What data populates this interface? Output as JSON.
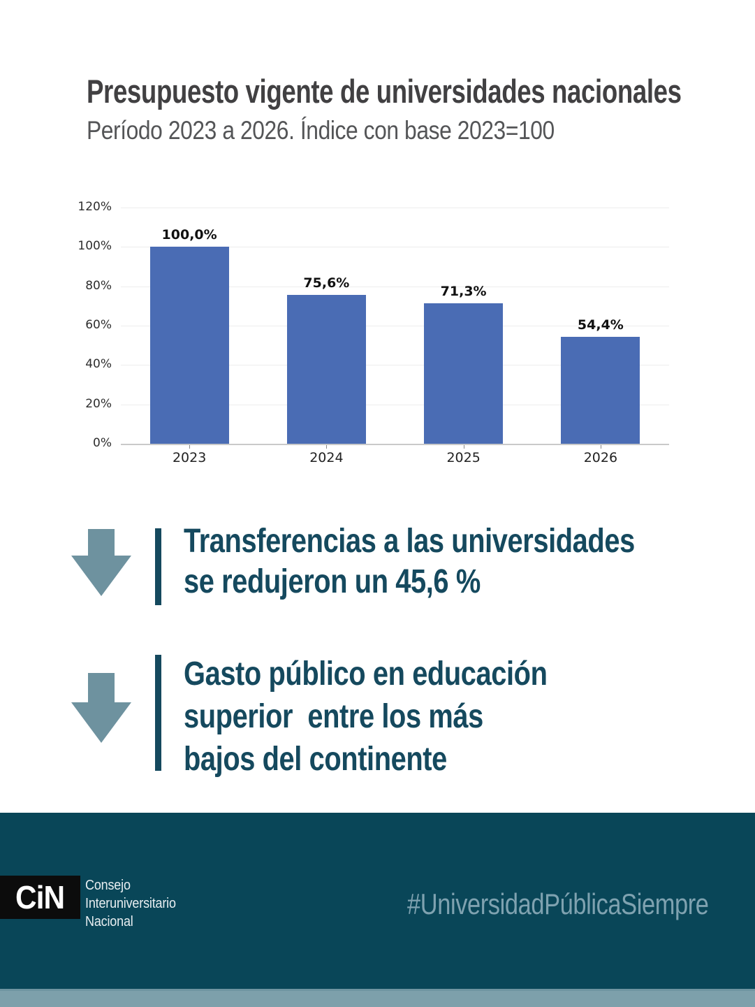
{
  "header": {
    "title": "Presupuesto vigente de universidades nacionales",
    "subtitle": "Período 2023 a 2026. Índice con base 2023=100"
  },
  "chart_data": {
    "type": "bar",
    "title": "",
    "xlabel": "",
    "ylabel": "",
    "categories": [
      "2023",
      "2024",
      "2025",
      "2026"
    ],
    "values": [
      100.0,
      75.6,
      71.3,
      54.4
    ],
    "value_labels": [
      "100,0%",
      "75,6%",
      "71,3%",
      "54,4%"
    ],
    "ylim": [
      0,
      120
    ],
    "yticks": [
      0,
      20,
      40,
      60,
      80,
      100,
      120
    ],
    "ytick_labels": [
      "0%",
      "20%",
      "40%",
      "60%",
      "80%",
      "100%",
      "120%"
    ],
    "grid": true,
    "legend": false,
    "bar_color": "#4a6cb4"
  },
  "callouts": [
    {
      "icon": "down-arrow",
      "lines": [
        "Transferencias a las universidades",
        "se redujeron un 45,6 %"
      ]
    },
    {
      "icon": "down-arrow",
      "lines": [
        "Gasto público en educación",
        "superior  entre los más",
        "bajos del continente"
      ]
    }
  ],
  "footer": {
    "logo": "CiN",
    "org_lines": [
      "Consejo",
      "Interuniversitario",
      "Nacional"
    ],
    "hashtag": "#UniversidadPúblicaSiempre"
  },
  "colors": {
    "bar_blue": "#4a6cb4",
    "dark_teal": "#15495e",
    "arrow_gray_blue": "#6e929f",
    "footer_bg": "#094658",
    "footer_strip": "#7da0ab",
    "title_gray": "#414042",
    "hashtag_blue": "#7fa2b0",
    "logo_bg": "#0c0c0c"
  }
}
